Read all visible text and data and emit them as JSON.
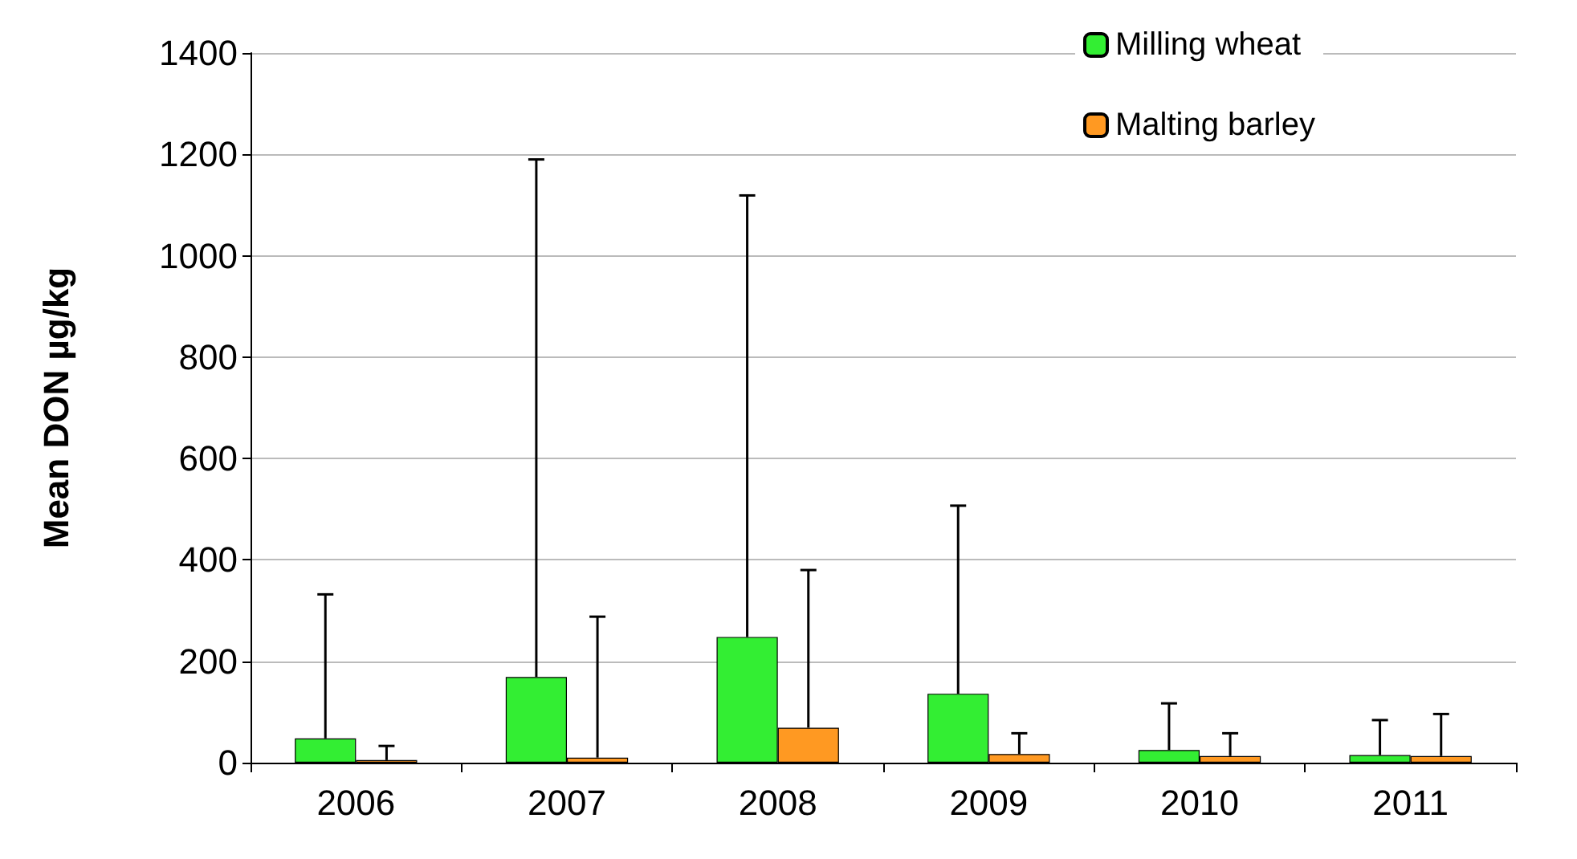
{
  "chart_data": {
    "type": "bar",
    "ylabel": "Mean DON µg/kg",
    "categories": [
      "2006",
      "2007",
      "2008",
      "2009",
      "2010",
      "2011"
    ],
    "series": [
      {
        "name": "Milling wheat",
        "color": "#33ee33",
        "values": [
          48,
          169,
          248,
          136,
          25,
          15
        ],
        "errors": [
          [
            48,
            332
          ],
          [
            169,
            1190
          ],
          [
            248,
            1119
          ],
          [
            136,
            507
          ],
          [
            25,
            117
          ],
          [
            15,
            84
          ]
        ]
      },
      {
        "name": "Malting barley",
        "color": "#ff9922",
        "values": [
          5,
          10,
          69,
          17,
          13,
          13
        ],
        "errors": [
          [
            5,
            33
          ],
          [
            10,
            288
          ],
          [
            69,
            380
          ],
          [
            17,
            58
          ],
          [
            13,
            58
          ],
          [
            13,
            96
          ]
        ]
      }
    ],
    "ylim": [
      0,
      1400
    ],
    "yticks": [
      0,
      200,
      400,
      600,
      800,
      1000,
      1200,
      1400
    ],
    "grid": "y",
    "legend": "top right"
  }
}
